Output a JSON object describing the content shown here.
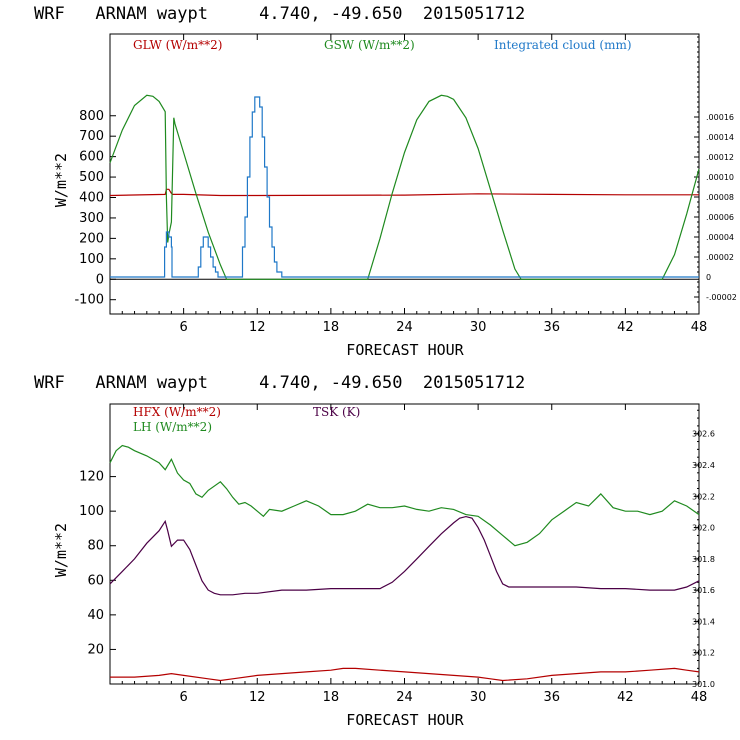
{
  "chart_data": [
    {
      "type": "line",
      "title": "WRF   ARNAM waypt     4.740, -49.650  2015051712",
      "xlabel": "FORECAST HOUR",
      "ylabel": "W/m**2",
      "xlim": [
        0,
        48
      ],
      "ylim": [
        -170,
        1200
      ],
      "xticks": [
        6,
        12,
        18,
        24,
        30,
        36,
        42,
        48
      ],
      "yticks": [
        -100,
        0,
        100,
        200,
        300,
        400,
        500,
        600,
        700,
        800
      ],
      "right_axis": {
        "ylim": [
          -3.7e-05,
          0.000243
        ],
        "ticks": [
          -2e-05,
          0,
          2e-05,
          4e-05,
          6e-05,
          8e-05,
          0.0001,
          0.00012,
          0.00014,
          0.00016
        ],
        "tick_labels": [
          "-.00002",
          "0",
          ".00002",
          ".00004",
          ".00006",
          ".00008",
          ".00010",
          ".00012",
          ".00014",
          ".00016"
        ]
      },
      "series": [
        {
          "name": "GLW (W/m**2)",
          "color": "#b40000",
          "axis": "left",
          "x": [
            0,
            4.5,
            4.6,
            4.8,
            5.0,
            5.1,
            6,
            9,
            12,
            24,
            30,
            36,
            42,
            48
          ],
          "y": [
            410,
            415,
            440,
            440,
            420,
            415,
            415,
            410,
            410,
            412,
            418,
            415,
            413,
            413
          ]
        },
        {
          "name": "GSW (W/m**2)",
          "color": "#1f8a1f",
          "axis": "left",
          "x": [
            0,
            1,
            2,
            3,
            3.5,
            4.0,
            4.5,
            4.6,
            4.7,
            4.8,
            5.0,
            5.2,
            5.3,
            6,
            7,
            8,
            9,
            9.5,
            21.0,
            22,
            23,
            24,
            25,
            26,
            27,
            27.5,
            28,
            29,
            30,
            31,
            32,
            33,
            33.5,
            45.0,
            46,
            47,
            48
          ],
          "y": [
            570,
            730,
            850,
            900,
            895,
            870,
            820,
            400,
            180,
            220,
            280,
            790,
            760,
            620,
            420,
            230,
            70,
            0,
            0,
            200,
            420,
            620,
            780,
            870,
            900,
            895,
            880,
            790,
            640,
            440,
            240,
            50,
            0,
            0,
            120,
            320,
            540
          ]
        },
        {
          "name": "Integrated cloud (mm)",
          "color": "#1f78c8",
          "axis": "right",
          "x": [
            0,
            4.4,
            4.45,
            4.6,
            4.8,
            5.0,
            5.05,
            7.0,
            7.2,
            7.4,
            7.6,
            7.8,
            8.0,
            8.2,
            8.4,
            8.6,
            8.8,
            10.6,
            10.8,
            11.0,
            11.2,
            11.4,
            11.6,
            11.8,
            12.0,
            12.2,
            12.4,
            12.6,
            12.8,
            13.0,
            13.2,
            13.4,
            13.6,
            14.0,
            48
          ],
          "y": [
            0,
            0,
            3e-05,
            4.5e-05,
            4e-05,
            3e-05,
            0,
            0,
            1e-05,
            3e-05,
            4e-05,
            4e-05,
            3e-05,
            2e-05,
            1e-05,
            5e-06,
            0,
            0,
            3e-05,
            6e-05,
            0.0001,
            0.00014,
            0.000165,
            0.00018,
            0.00018,
            0.00017,
            0.00014,
            0.00011,
            8e-05,
            5e-05,
            3e-05,
            1.5e-05,
            5e-06,
            0,
            0
          ]
        }
      ]
    },
    {
      "type": "line",
      "title": "WRF   ARNAM waypt     4.740, -49.650  2015051712",
      "xlabel": "FORECAST HOUR",
      "ylabel": "W/m**2",
      "xlim": [
        0,
        48
      ],
      "ylim": [
        0,
        162
      ],
      "xticks": [
        6,
        12,
        18,
        24,
        30,
        36,
        42,
        48
      ],
      "yticks": [
        20,
        40,
        60,
        80,
        100,
        120
      ],
      "right_axis": {
        "ylim": [
          301.0,
          302.79
        ],
        "ticks": [
          301.0,
          301.2,
          301.4,
          301.6,
          301.8,
          302.0,
          302.2,
          302.4,
          302.6
        ],
        "tick_labels": [
          "301.0",
          "301.2",
          "301.4",
          "301.6",
          "301.8",
          "302.0",
          "302.2",
          "302.4",
          "302.6"
        ]
      },
      "series": [
        {
          "name": "HFX (W/m**2)",
          "color": "#b40000",
          "axis": "left",
          "x": [
            0,
            2,
            4,
            5,
            6,
            8,
            9,
            10,
            12,
            14,
            16,
            18,
            19,
            20,
            22,
            24,
            26,
            28,
            30,
            31,
            32,
            34,
            36,
            38,
            40,
            42,
            44,
            46,
            47,
            48
          ],
          "y": [
            4,
            4,
            5,
            6,
            5,
            3,
            2,
            3,
            5,
            6,
            7,
            8,
            9,
            9,
            8,
            7,
            6,
            5,
            4,
            3,
            2,
            3,
            5,
            6,
            7,
            7,
            8,
            9,
            8,
            7
          ]
        },
        {
          "name": "LH  (W/m**2)",
          "color": "#1f8a1f",
          "axis": "left",
          "x": [
            0,
            0.5,
            1,
            1.5,
            2,
            3,
            4,
            4.5,
            5,
            5.5,
            6,
            6.5,
            7,
            7.5,
            8,
            9,
            9.5,
            10,
            10.5,
            11,
            11.5,
            12,
            12.5,
            13,
            14,
            15,
            16,
            17,
            18,
            19,
            20,
            21,
            22,
            23,
            24,
            25,
            26,
            27,
            28,
            29,
            30,
            31,
            32,
            33,
            34,
            35,
            36,
            37,
            38,
            39,
            40,
            41,
            42,
            43,
            44,
            45,
            46,
            47,
            48
          ],
          "y": [
            128,
            135,
            138,
            137,
            135,
            132,
            128,
            124,
            130,
            122,
            118,
            116,
            110,
            108,
            112,
            117,
            113,
            108,
            104,
            105,
            103,
            100,
            97,
            101,
            100,
            103,
            106,
            103,
            98,
            98,
            100,
            104,
            102,
            102,
            103,
            101,
            100,
            102,
            101,
            98,
            97,
            92,
            86,
            80,
            82,
            87,
            95,
            100,
            105,
            103,
            110,
            102,
            100,
            100,
            98,
            100,
            106,
            103,
            98
          ]
        },
        {
          "name": "TSK (K)",
          "color": "#4b0046",
          "axis": "right",
          "x": [
            0,
            1,
            2,
            3,
            4,
            4.5,
            4.7,
            5,
            5.5,
            6,
            6.5,
            7,
            7.5,
            8,
            8.5,
            9,
            9.5,
            10,
            11,
            12,
            14,
            16,
            18,
            20,
            21,
            22,
            23,
            24,
            25,
            26,
            27,
            28,
            28.5,
            29,
            29.5,
            30,
            30.5,
            31,
            31.5,
            32,
            32.5,
            33,
            34,
            36,
            38,
            40,
            42,
            44,
            46,
            47,
            48
          ],
          "y": [
            301.64,
            301.72,
            301.8,
            301.9,
            301.98,
            302.04,
            301.98,
            301.88,
            301.92,
            301.92,
            301.86,
            301.76,
            301.66,
            301.6,
            301.58,
            301.57,
            301.57,
            301.57,
            301.58,
            301.58,
            301.6,
            301.6,
            301.61,
            301.61,
            301.61,
            301.61,
            301.65,
            301.72,
            301.8,
            301.88,
            301.96,
            302.03,
            302.06,
            302.07,
            302.06,
            302.0,
            301.92,
            301.82,
            301.72,
            301.64,
            301.62,
            301.62,
            301.62,
            301.62,
            301.62,
            301.61,
            301.61,
            301.6,
            301.6,
            301.62,
            301.66
          ]
        }
      ]
    }
  ]
}
